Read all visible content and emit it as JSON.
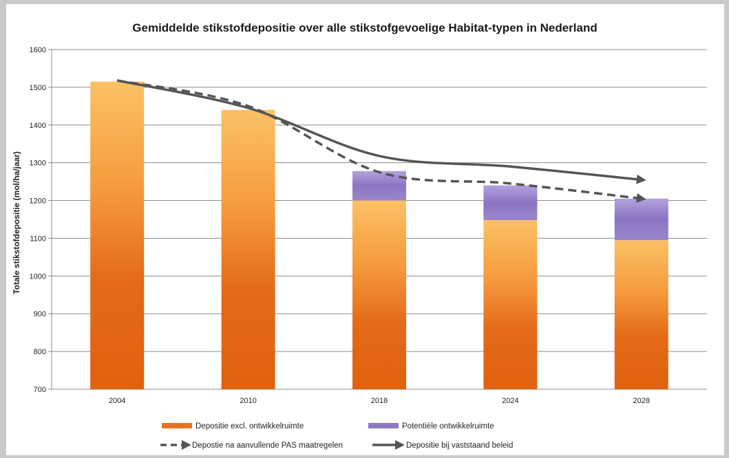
{
  "chart_data": {
    "type": "bar",
    "title": "Gemiddelde stikstofdepositie over alle stikstofgevoelige Habitat-typen in Nederland",
    "xlabel": "",
    "ylabel": "Totale stikstofdepositie (mol/ha/jaar)",
    "ylim": [
      700,
      1600
    ],
    "yticks": [
      700,
      800,
      900,
      1000,
      1100,
      1200,
      1300,
      1400,
      1500,
      1600
    ],
    "grid": true,
    "legend_position": "bottom",
    "categories": [
      "2004",
      "2010",
      "2018",
      "2024",
      "2028"
    ],
    "series": [
      {
        "name": "Depositie excl. ontwikkelruimte",
        "kind": "bar",
        "color": "#e8731e",
        "values": [
          1515,
          1440,
          1200,
          1148,
          1095
        ]
      },
      {
        "name": "Potentiële ontwikkelruimte",
        "kind": "bar",
        "color": "#8e79c4",
        "values": [
          0,
          0,
          78,
          92,
          110
        ]
      },
      {
        "name": "Depostie na aanvullende PAS maatregelen",
        "kind": "line",
        "style": "dashed",
        "color": "#555555",
        "values": [
          1518,
          1450,
          1275,
          1245,
          1205
        ]
      },
      {
        "name": "Depositie bij vaststaand beleid",
        "kind": "line",
        "style": "solid",
        "color": "#555555",
        "values": [
          1518,
          1445,
          1318,
          1290,
          1255
        ]
      }
    ]
  }
}
